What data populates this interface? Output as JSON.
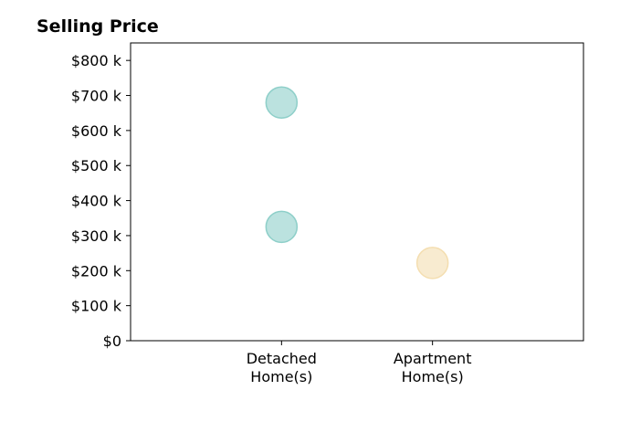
{
  "chart_data": {
    "type": "scatter",
    "title": "Selling Price",
    "xlabel": "",
    "ylabel": "",
    "categories": [
      [
        "Detached",
        "Home(s)"
      ],
      [
        "Apartment",
        "Home(s)"
      ]
    ],
    "x_range": [
      -1,
      2
    ],
    "ylim": [
      0,
      850000
    ],
    "y_ticks": [
      0,
      100000,
      200000,
      300000,
      400000,
      500000,
      600000,
      700000,
      800000
    ],
    "y_tick_labels": [
      "$0",
      "$100 k",
      "$200 k",
      "$300 k",
      "$400 k",
      "$500 k",
      "$600 k",
      "$700 k",
      "$800 k"
    ],
    "grid": false,
    "points": [
      {
        "category": 0,
        "y": 680000,
        "color": "#8ecfc9"
      },
      {
        "category": 0,
        "y": 325000,
        "color": "#8ecfc9"
      },
      {
        "category": 1,
        "y": 222000,
        "color": "#f4deb0"
      }
    ]
  }
}
